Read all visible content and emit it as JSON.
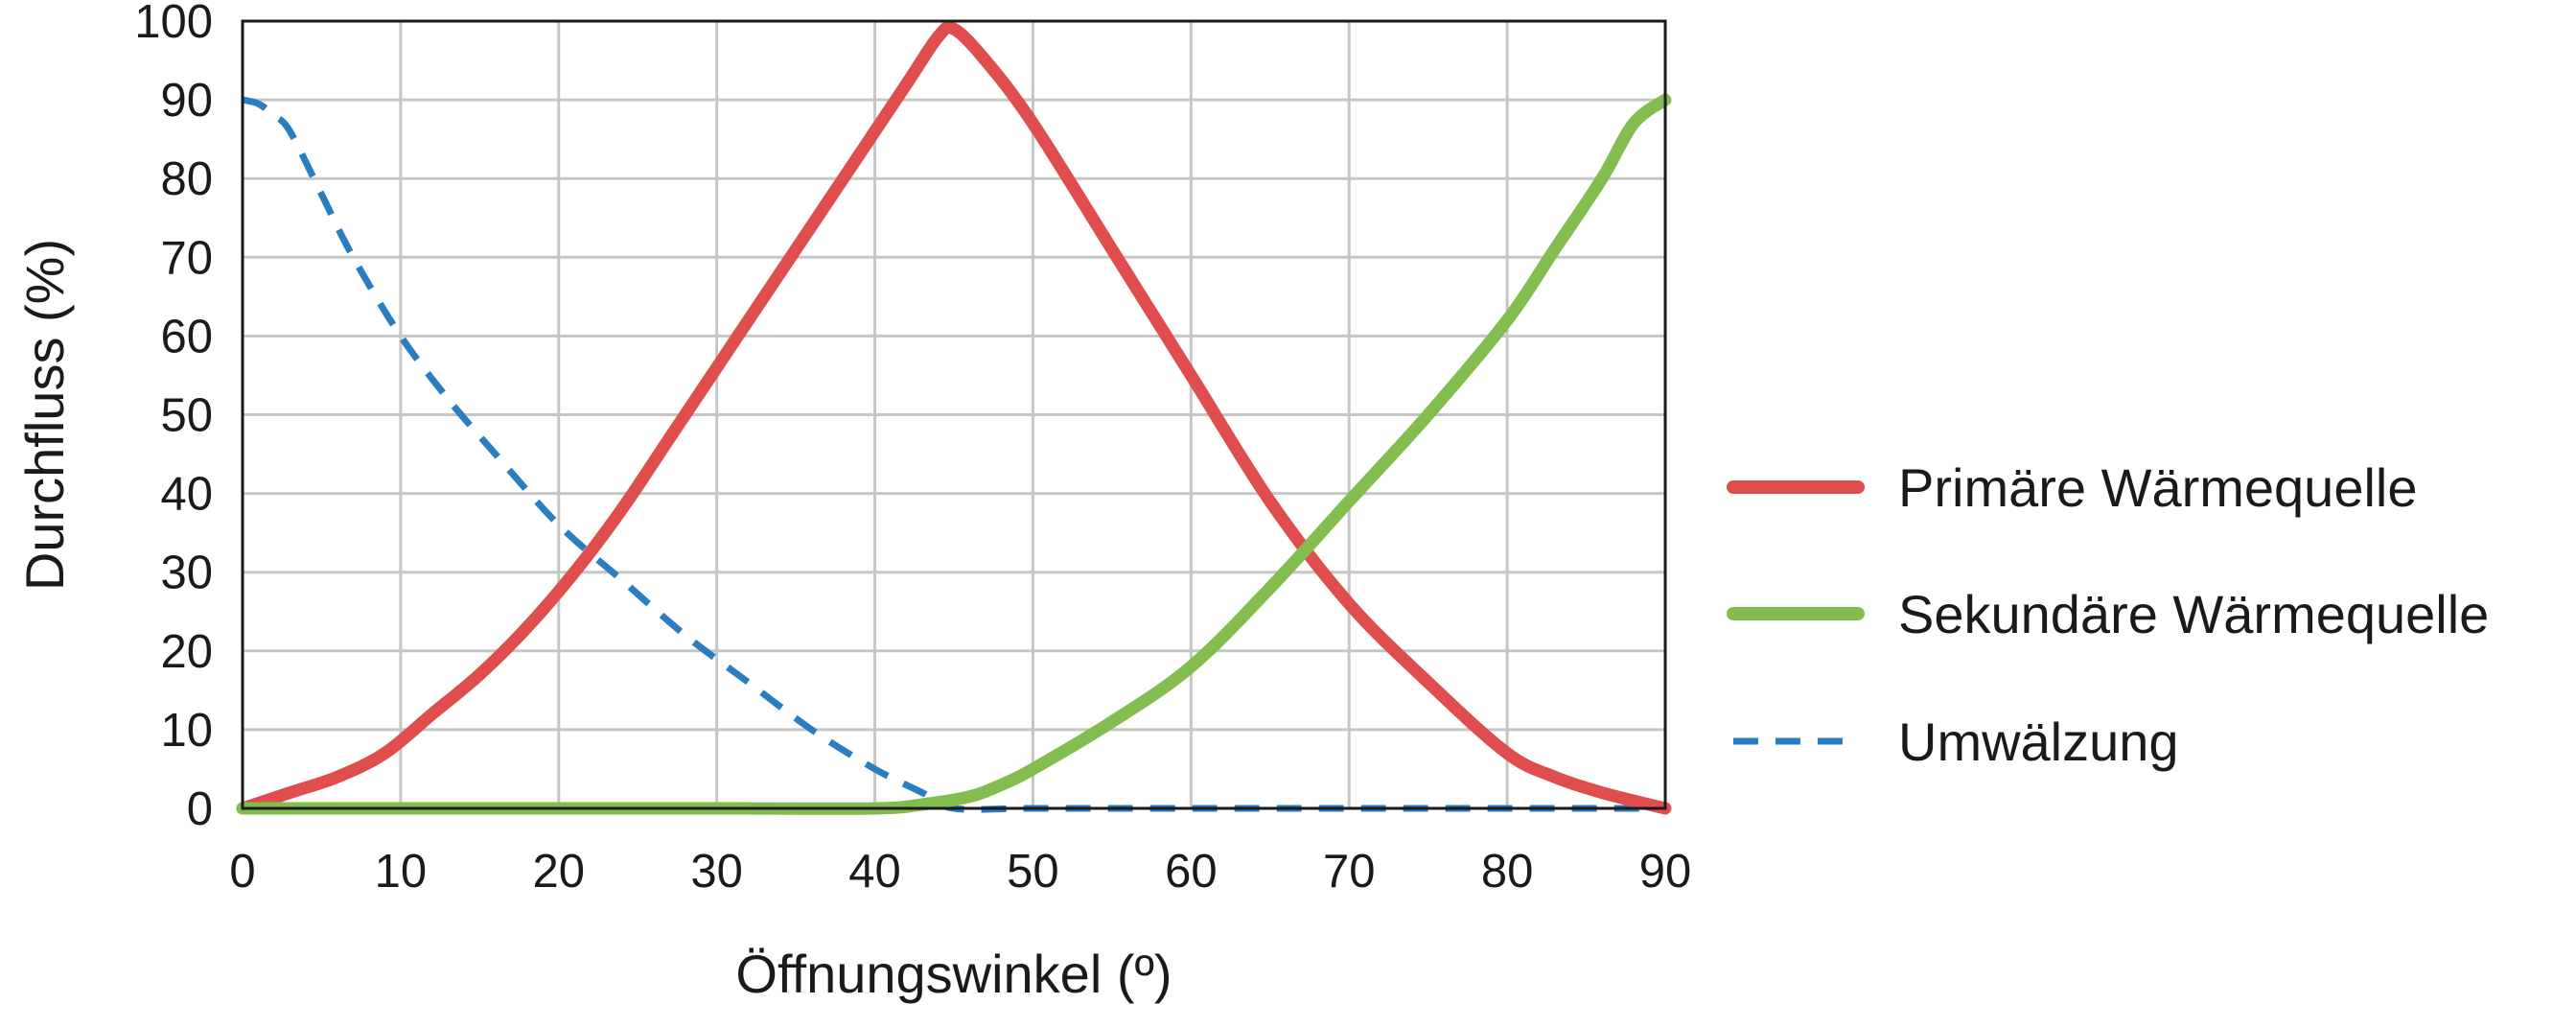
{
  "chart_data": {
    "type": "line",
    "xlabel": "Öffnungswinkel (º)",
    "ylabel": "Durchfluss (%)",
    "xlim": [
      0,
      90
    ],
    "ylim": [
      0,
      100
    ],
    "xticks": [
      0,
      10,
      20,
      30,
      40,
      50,
      60,
      70,
      80,
      90
    ],
    "yticks": [
      0,
      10,
      20,
      30,
      40,
      50,
      60,
      70,
      80,
      90,
      100
    ],
    "grid": true,
    "legend_position": "right",
    "series": [
      {
        "name": "Primäre Wärmequelle",
        "color": "#e04d4d",
        "style": "solid",
        "x": [
          0,
          3,
          6,
          9,
          12,
          15,
          18,
          21,
          24,
          27,
          30,
          33,
          36,
          39,
          42,
          44,
          45,
          47,
          50,
          55,
          60,
          65,
          70,
          75,
          80,
          83,
          86,
          90
        ],
        "y": [
          0,
          2,
          4,
          7,
          12,
          17,
          23,
          30,
          38,
          47,
          56,
          65,
          74,
          83,
          92,
          98,
          99,
          95,
          87,
          71,
          55,
          39,
          26,
          16,
          7,
          4,
          2,
          0
        ]
      },
      {
        "name": "Sekundäre Wärmequelle",
        "color": "#84bd4f",
        "style": "solid",
        "x": [
          0,
          10,
          20,
          30,
          40,
          43,
          46,
          48,
          50,
          55,
          60,
          65,
          70,
          75,
          80,
          83,
          86,
          88,
          90
        ],
        "y": [
          0,
          0,
          0,
          0,
          0,
          0.5,
          1.5,
          3,
          5,
          11,
          18,
          28,
          39,
          50,
          62,
          71,
          80,
          87,
          90
        ]
      },
      {
        "name": "Umwälzung",
        "color": "#2a7dc2",
        "style": "dashed",
        "x": [
          0,
          1,
          2,
          3,
          5,
          7,
          10,
          13,
          16,
          20,
          24,
          28,
          32,
          36,
          40,
          43,
          45,
          50,
          60,
          70,
          80,
          90
        ],
        "y": [
          90,
          89.5,
          88,
          86,
          78,
          70,
          60,
          52,
          45,
          36,
          29,
          22,
          16,
          10,
          5,
          2,
          0,
          0,
          0,
          0,
          0,
          0
        ]
      }
    ]
  }
}
